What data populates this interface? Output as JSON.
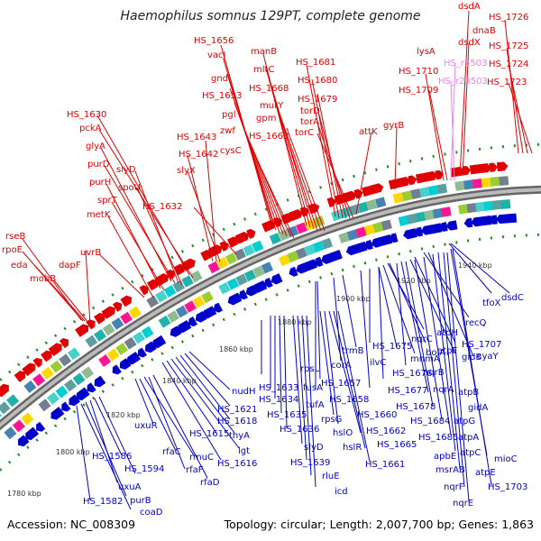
{
  "title": "Haemophilus somnus 129PT, complete genome",
  "footer": {
    "accession": "Accession: NC_008309",
    "topology": "Topology: circular; Length: 2,007,700 bp; Genes: 1,863"
  },
  "kbp_ticks": [
    "1780 kbp",
    "1800 kbp",
    "1820 kbp",
    "1840 kbp",
    "1860 kbp",
    "1880 kbp",
    "1900 kbp",
    "1920 kbp",
    "1940 kbp"
  ],
  "colors": {
    "forward_gene": "#e00000",
    "reverse_gene": "#0000cc",
    "rna_gene": "#ee82ee",
    "backbone": "#999999",
    "gc_dots": "#228b22"
  },
  "red_labels": [
    "HS_1656",
    "vacJ",
    "manB",
    "dsdA",
    "gnd",
    "mltC",
    "HS_1681",
    "HS_1726",
    "dnaB",
    "HS_1653",
    "HS_1668",
    "HS_1680",
    "lysA",
    "dsdX",
    "HS_1725",
    "pgl",
    "murY",
    "HS_1679",
    "HS_1710",
    "HS_1724",
    "HS_1630",
    "zwf",
    "gpm",
    "torD",
    "HS_1709",
    "HS_1723",
    "pckA",
    "cysC",
    "torA",
    "gyrB",
    "HS_1643",
    "HS_1663",
    "torC",
    "attK",
    "glyA",
    "HS_1642",
    "slyX",
    "purD",
    "slyD",
    "purH",
    "spoU",
    "sprT",
    "HS_1632",
    "metK",
    "rseB",
    "rpoE",
    "uvrB",
    "eda",
    "dapF",
    "mobB"
  ],
  "pink_labels": [
    "HS_r5503",
    "HS_r23503"
  ],
  "blue_labels": [
    "tfoX",
    "dsdC",
    "recQ",
    "cyaY",
    "HS_1707",
    "gidB",
    "atpH",
    "atpF",
    "nqrC",
    "bolA",
    "mnmA",
    "HS_1675",
    "trmB",
    "corA",
    "rpsL",
    "fusA",
    "HS_1657",
    "HS_1658",
    "ilvC",
    "HS_1676",
    "nqrB",
    "nqrA",
    "HS_1677",
    "atpB",
    "gidA",
    "atpG",
    "HS_1678",
    "HS_1684",
    "atpA",
    "HS_1685",
    "apbE",
    "msrAB",
    "atpC",
    "atpE",
    "nqrF",
    "nqrE",
    "mioC",
    "HS_1703",
    "HS_1633",
    "HS_1634",
    "tufA",
    "rpsG",
    "HS_1660",
    "HS_1662",
    "HS_1665",
    "HS_1635",
    "HS_1636",
    "hslO",
    "hslR",
    "HS_1661",
    "HS_1639",
    "slyD",
    "rluE",
    "icd",
    "nudH",
    "HS_1621",
    "HS_1618",
    "thyA",
    "lgt",
    "HS_1615",
    "HS_1616",
    "uxuR",
    "rfaC",
    "rmuC",
    "rfaF",
    "rfaD",
    "HS_1594",
    "HS_1586",
    "uxuA",
    "purB",
    "coaD",
    "HS_1582"
  ]
}
